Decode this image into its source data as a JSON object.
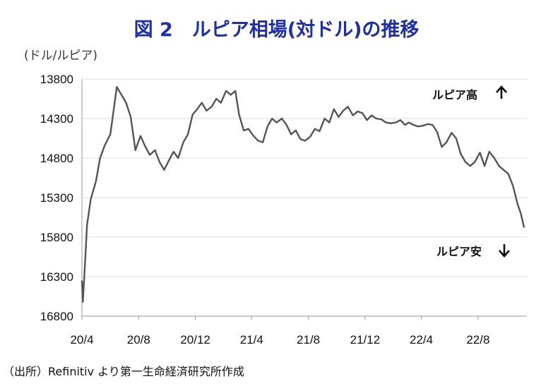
{
  "title": "図 2　ルピア相場(対ドル)の推移",
  "unit_label": "(ドル/ルピア)",
  "source_note": "（出所）Refinitiv より第一生命経済研究所作成",
  "colors": {
    "title": "#1e2fa8",
    "line": "#555555",
    "grid": "#dcdcdc",
    "axis": "#999999"
  },
  "chart_data": {
    "type": "line",
    "title": "図 2　ルピア相場(対ドル)の推移",
    "ylabel": "(ドル/ルピア)",
    "xlabel": "",
    "y_inverted": true,
    "ylim": [
      13800,
      16800
    ],
    "grid": "horizontal",
    "y_ticks": [
      13800,
      14300,
      14800,
      15300,
      15800,
      16300,
      16800
    ],
    "y_tick_labels": [
      "13800",
      "14300",
      "14800",
      "15300",
      "15800",
      "16300",
      "16800"
    ],
    "x_ticks": [
      "2020-04",
      "2020-08",
      "2020-12",
      "2021-04",
      "2021-08",
      "2021-12",
      "2022-04",
      "2022-08"
    ],
    "x_tick_labels": [
      "20/4",
      "20/8",
      "20/12",
      "21/4",
      "21/8",
      "21/12",
      "22/4",
      "22/8"
    ],
    "annotations": [
      {
        "text": "ルピア高",
        "arrow": "up"
      },
      {
        "text": "ルピア安",
        "arrow": "down"
      }
    ],
    "series": [
      {
        "x": [
          "2020-04-01",
          "2020-04-03",
          "2020-04-08",
          "2020-04-12",
          "2020-04-20",
          "2020-05-01",
          "2020-05-10",
          "2020-05-20",
          "2020-06-01",
          "2020-06-08",
          "2020-06-15",
          "2020-06-25",
          "2020-07-05",
          "2020-07-15",
          "2020-07-25",
          "2020-08-05",
          "2020-08-15",
          "2020-08-25",
          "2020-09-05",
          "2020-09-15",
          "2020-09-25",
          "2020-10-05",
          "2020-10-15",
          "2020-10-25",
          "2020-11-05",
          "2020-11-15",
          "2020-11-25",
          "2020-12-05",
          "2020-12-15",
          "2020-12-25",
          "2021-01-05",
          "2021-01-15",
          "2021-01-25",
          "2021-02-05",
          "2021-02-15",
          "2021-02-25",
          "2021-03-05",
          "2021-03-15",
          "2021-03-25",
          "2021-04-05",
          "2021-04-15",
          "2021-04-25",
          "2021-05-05",
          "2021-05-15",
          "2021-05-25",
          "2021-06-05",
          "2021-06-15",
          "2021-06-25",
          "2021-07-05",
          "2021-07-15",
          "2021-07-25",
          "2021-08-05",
          "2021-08-15",
          "2021-08-25",
          "2021-09-05",
          "2021-09-15",
          "2021-09-25",
          "2021-10-05",
          "2021-10-15",
          "2021-10-25",
          "2021-11-05",
          "2021-11-15",
          "2021-11-25",
          "2021-12-05",
          "2021-12-15",
          "2021-12-25",
          "2022-01-05",
          "2022-01-15",
          "2022-01-25",
          "2022-02-05",
          "2022-02-15",
          "2022-02-25",
          "2022-03-05",
          "2022-03-15",
          "2022-03-25",
          "2022-04-05",
          "2022-04-15",
          "2022-04-25",
          "2022-05-05",
          "2022-05-15",
          "2022-05-25",
          "2022-06-05",
          "2022-06-15",
          "2022-06-25",
          "2022-07-05",
          "2022-07-15",
          "2022-07-25",
          "2022-08-05",
          "2022-08-15",
          "2022-08-25",
          "2022-09-05",
          "2022-09-15",
          "2022-09-25",
          "2022-10-05",
          "2022-10-15",
          "2022-10-25",
          "2022-11-01",
          "2022-11-08"
        ],
        "y": [
          16350,
          16620,
          16100,
          15650,
          15320,
          15100,
          14800,
          14640,
          14500,
          14200,
          13900,
          14000,
          14100,
          14280,
          14700,
          14520,
          14650,
          14760,
          14700,
          14850,
          14950,
          14830,
          14720,
          14800,
          14600,
          14500,
          14250,
          14180,
          14100,
          14200,
          14150,
          14050,
          14100,
          13950,
          14000,
          13950,
          14250,
          14450,
          14430,
          14520,
          14580,
          14600,
          14400,
          14300,
          14350,
          14300,
          14380,
          14500,
          14450,
          14560,
          14580,
          14530,
          14430,
          14460,
          14300,
          14350,
          14180,
          14280,
          14200,
          14150,
          14260,
          14210,
          14230,
          14320,
          14260,
          14300,
          14310,
          14350,
          14360,
          14350,
          14320,
          14380,
          14350,
          14380,
          14400,
          14390,
          14370,
          14380,
          14470,
          14660,
          14600,
          14480,
          14550,
          14750,
          14850,
          14900,
          14850,
          14730,
          14900,
          14720,
          14800,
          14900,
          14950,
          15000,
          15150,
          15380,
          15500,
          15680
        ]
      }
    ]
  }
}
